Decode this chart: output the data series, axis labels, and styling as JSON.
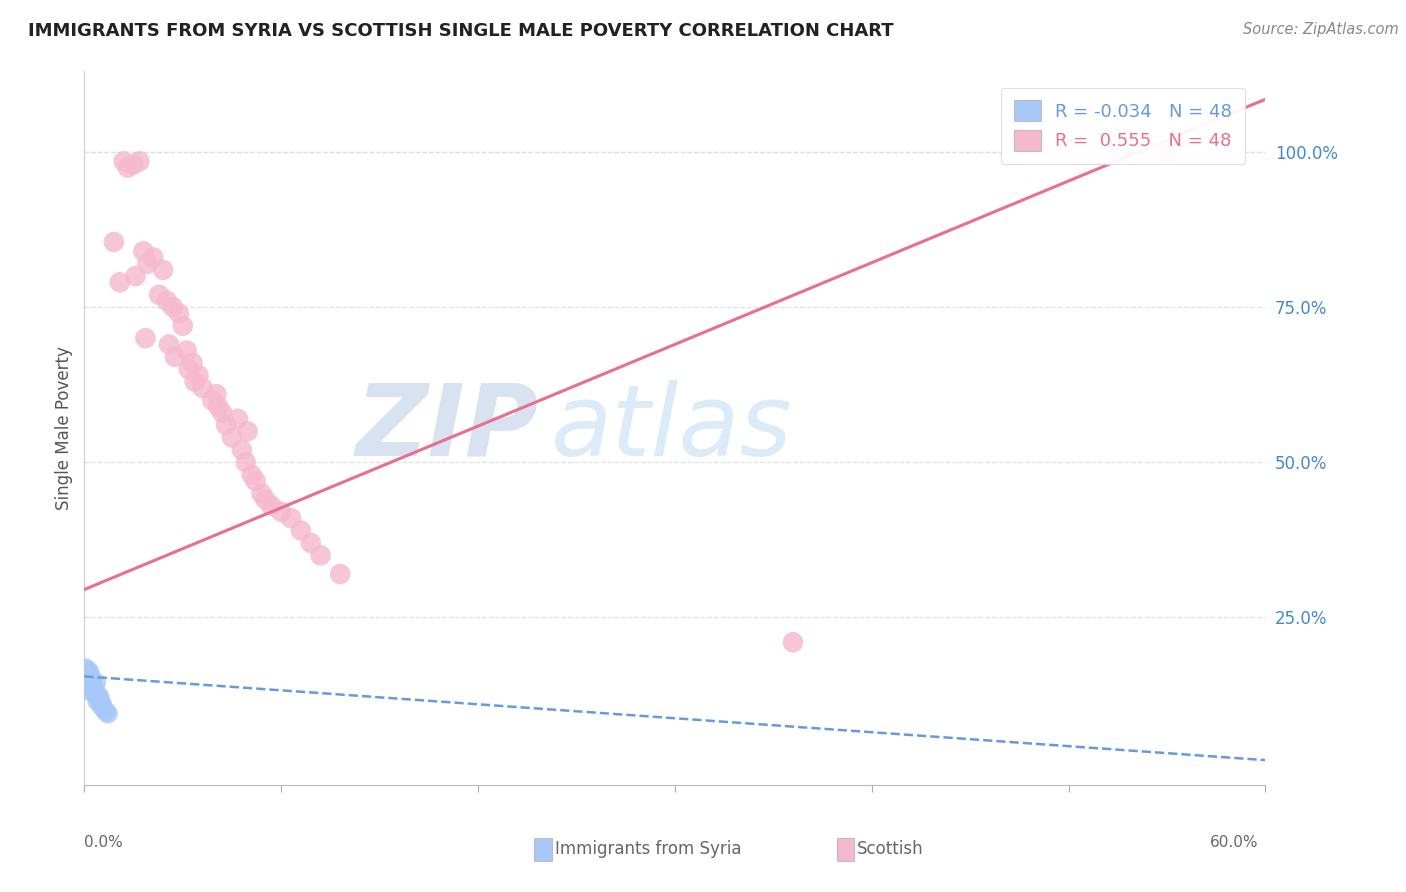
{
  "title": "IMMIGRANTS FROM SYRIA VS SCOTTISH SINGLE MALE POVERTY CORRELATION CHART",
  "source": "Source: ZipAtlas.com",
  "ylabel": "Single Male Poverty",
  "ylabel_right_ticks": [
    "100.0%",
    "75.0%",
    "50.0%",
    "25.0%"
  ],
  "ylabel_right_vals": [
    1.0,
    0.75,
    0.5,
    0.25
  ],
  "x_lim": [
    0.0,
    0.6
  ],
  "y_lim": [
    -0.02,
    1.13
  ],
  "watermark_zip": "ZIP",
  "watermark_atlas": "atlas",
  "legend_blue_r": "-0.034",
  "legend_blue_n": "48",
  "legend_pink_r": "0.555",
  "legend_pink_n": "48",
  "blue_color": "#a8c8f8",
  "pink_color": "#f5b8cc",
  "blue_line_color": "#6699dd",
  "pink_line_color": "#e8708a",
  "grid_color": "#e0e0e0",
  "title_color": "#222222",
  "source_color": "#888888",
  "right_tick_color": "#4488cc",
  "bottom_label_color": "#666666",
  "blue_scatter_x": [
    0.001,
    0.0015,
    0.0008,
    0.002,
    0.0012,
    0.0018,
    0.0009,
    0.0022,
    0.0014,
    0.0011,
    0.0007,
    0.0016,
    0.0013,
    0.0019,
    0.0025,
    0.001,
    0.0008,
    0.0015,
    0.0021,
    0.0017,
    0.0012,
    0.0009,
    0.0016,
    0.003,
    0.0018,
    0.0011,
    0.0007,
    0.0023,
    0.0014,
    0.001,
    0.0042,
    0.0035,
    0.006,
    0.005,
    0.0028,
    0.0038,
    0.0055,
    0.0045,
    0.007,
    0.008,
    0.0065,
    0.009,
    0.0075,
    0.0085,
    0.0095,
    0.011,
    0.01,
    0.012
  ],
  "blue_scatter_y": [
    0.155,
    0.158,
    0.162,
    0.15,
    0.145,
    0.152,
    0.148,
    0.16,
    0.153,
    0.157,
    0.165,
    0.149,
    0.156,
    0.151,
    0.163,
    0.147,
    0.144,
    0.159,
    0.154,
    0.161,
    0.146,
    0.168,
    0.143,
    0.158,
    0.15,
    0.155,
    0.162,
    0.148,
    0.152,
    0.14,
    0.14,
    0.13,
    0.145,
    0.135,
    0.138,
    0.142,
    0.128,
    0.133,
    0.125,
    0.12,
    0.115,
    0.11,
    0.118,
    0.108,
    0.105,
    0.098,
    0.102,
    0.095
  ],
  "pink_scatter_x": [
    0.02,
    0.025,
    0.022,
    0.028,
    0.03,
    0.035,
    0.032,
    0.038,
    0.04,
    0.042,
    0.045,
    0.048,
    0.05,
    0.052,
    0.055,
    0.058,
    0.06,
    0.065,
    0.07,
    0.072,
    0.075,
    0.08,
    0.082,
    0.085,
    0.09,
    0.095,
    0.1,
    0.105,
    0.11,
    0.115,
    0.12,
    0.13,
    0.36,
    0.015,
    0.018,
    0.026,
    0.031,
    0.043,
    0.046,
    0.053,
    0.056,
    0.067,
    0.068,
    0.078,
    0.083,
    0.087,
    0.092,
    0.55
  ],
  "pink_scatter_y": [
    0.985,
    0.98,
    0.975,
    0.985,
    0.84,
    0.83,
    0.82,
    0.77,
    0.81,
    0.76,
    0.75,
    0.74,
    0.72,
    0.68,
    0.66,
    0.64,
    0.62,
    0.6,
    0.58,
    0.56,
    0.54,
    0.52,
    0.5,
    0.48,
    0.45,
    0.43,
    0.42,
    0.41,
    0.39,
    0.37,
    0.35,
    0.32,
    0.21,
    0.855,
    0.79,
    0.8,
    0.7,
    0.69,
    0.67,
    0.65,
    0.63,
    0.61,
    0.59,
    0.57,
    0.55,
    0.47,
    0.44,
    1.0
  ],
  "blue_line_x": [
    0.0,
    0.6
  ],
  "blue_line_y": [
    0.155,
    0.02
  ],
  "pink_line_x": [
    0.0,
    0.6
  ],
  "pink_line_y": [
    0.295,
    1.085
  ]
}
